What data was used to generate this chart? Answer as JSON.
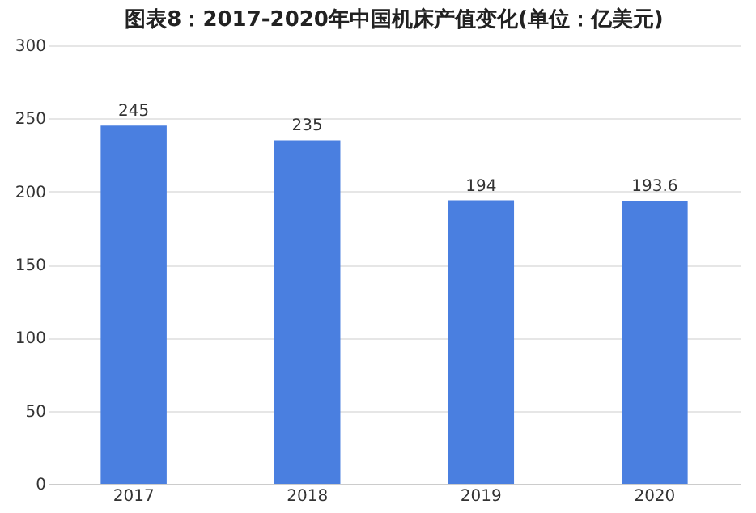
{
  "chart_data": {
    "type": "bar",
    "title": "图表8：2017-2020年中国机床产值变化(单位：亿美元)",
    "categories": [
      "2017",
      "2018",
      "2019",
      "2020"
    ],
    "values": [
      245,
      235,
      194,
      193.6
    ],
    "color": "#4a7fe0",
    "ylim": [
      0,
      300
    ],
    "yticks": [
      0,
      50,
      100,
      150,
      200,
      250,
      300
    ],
    "grid": "y",
    "data_labels": true
  }
}
